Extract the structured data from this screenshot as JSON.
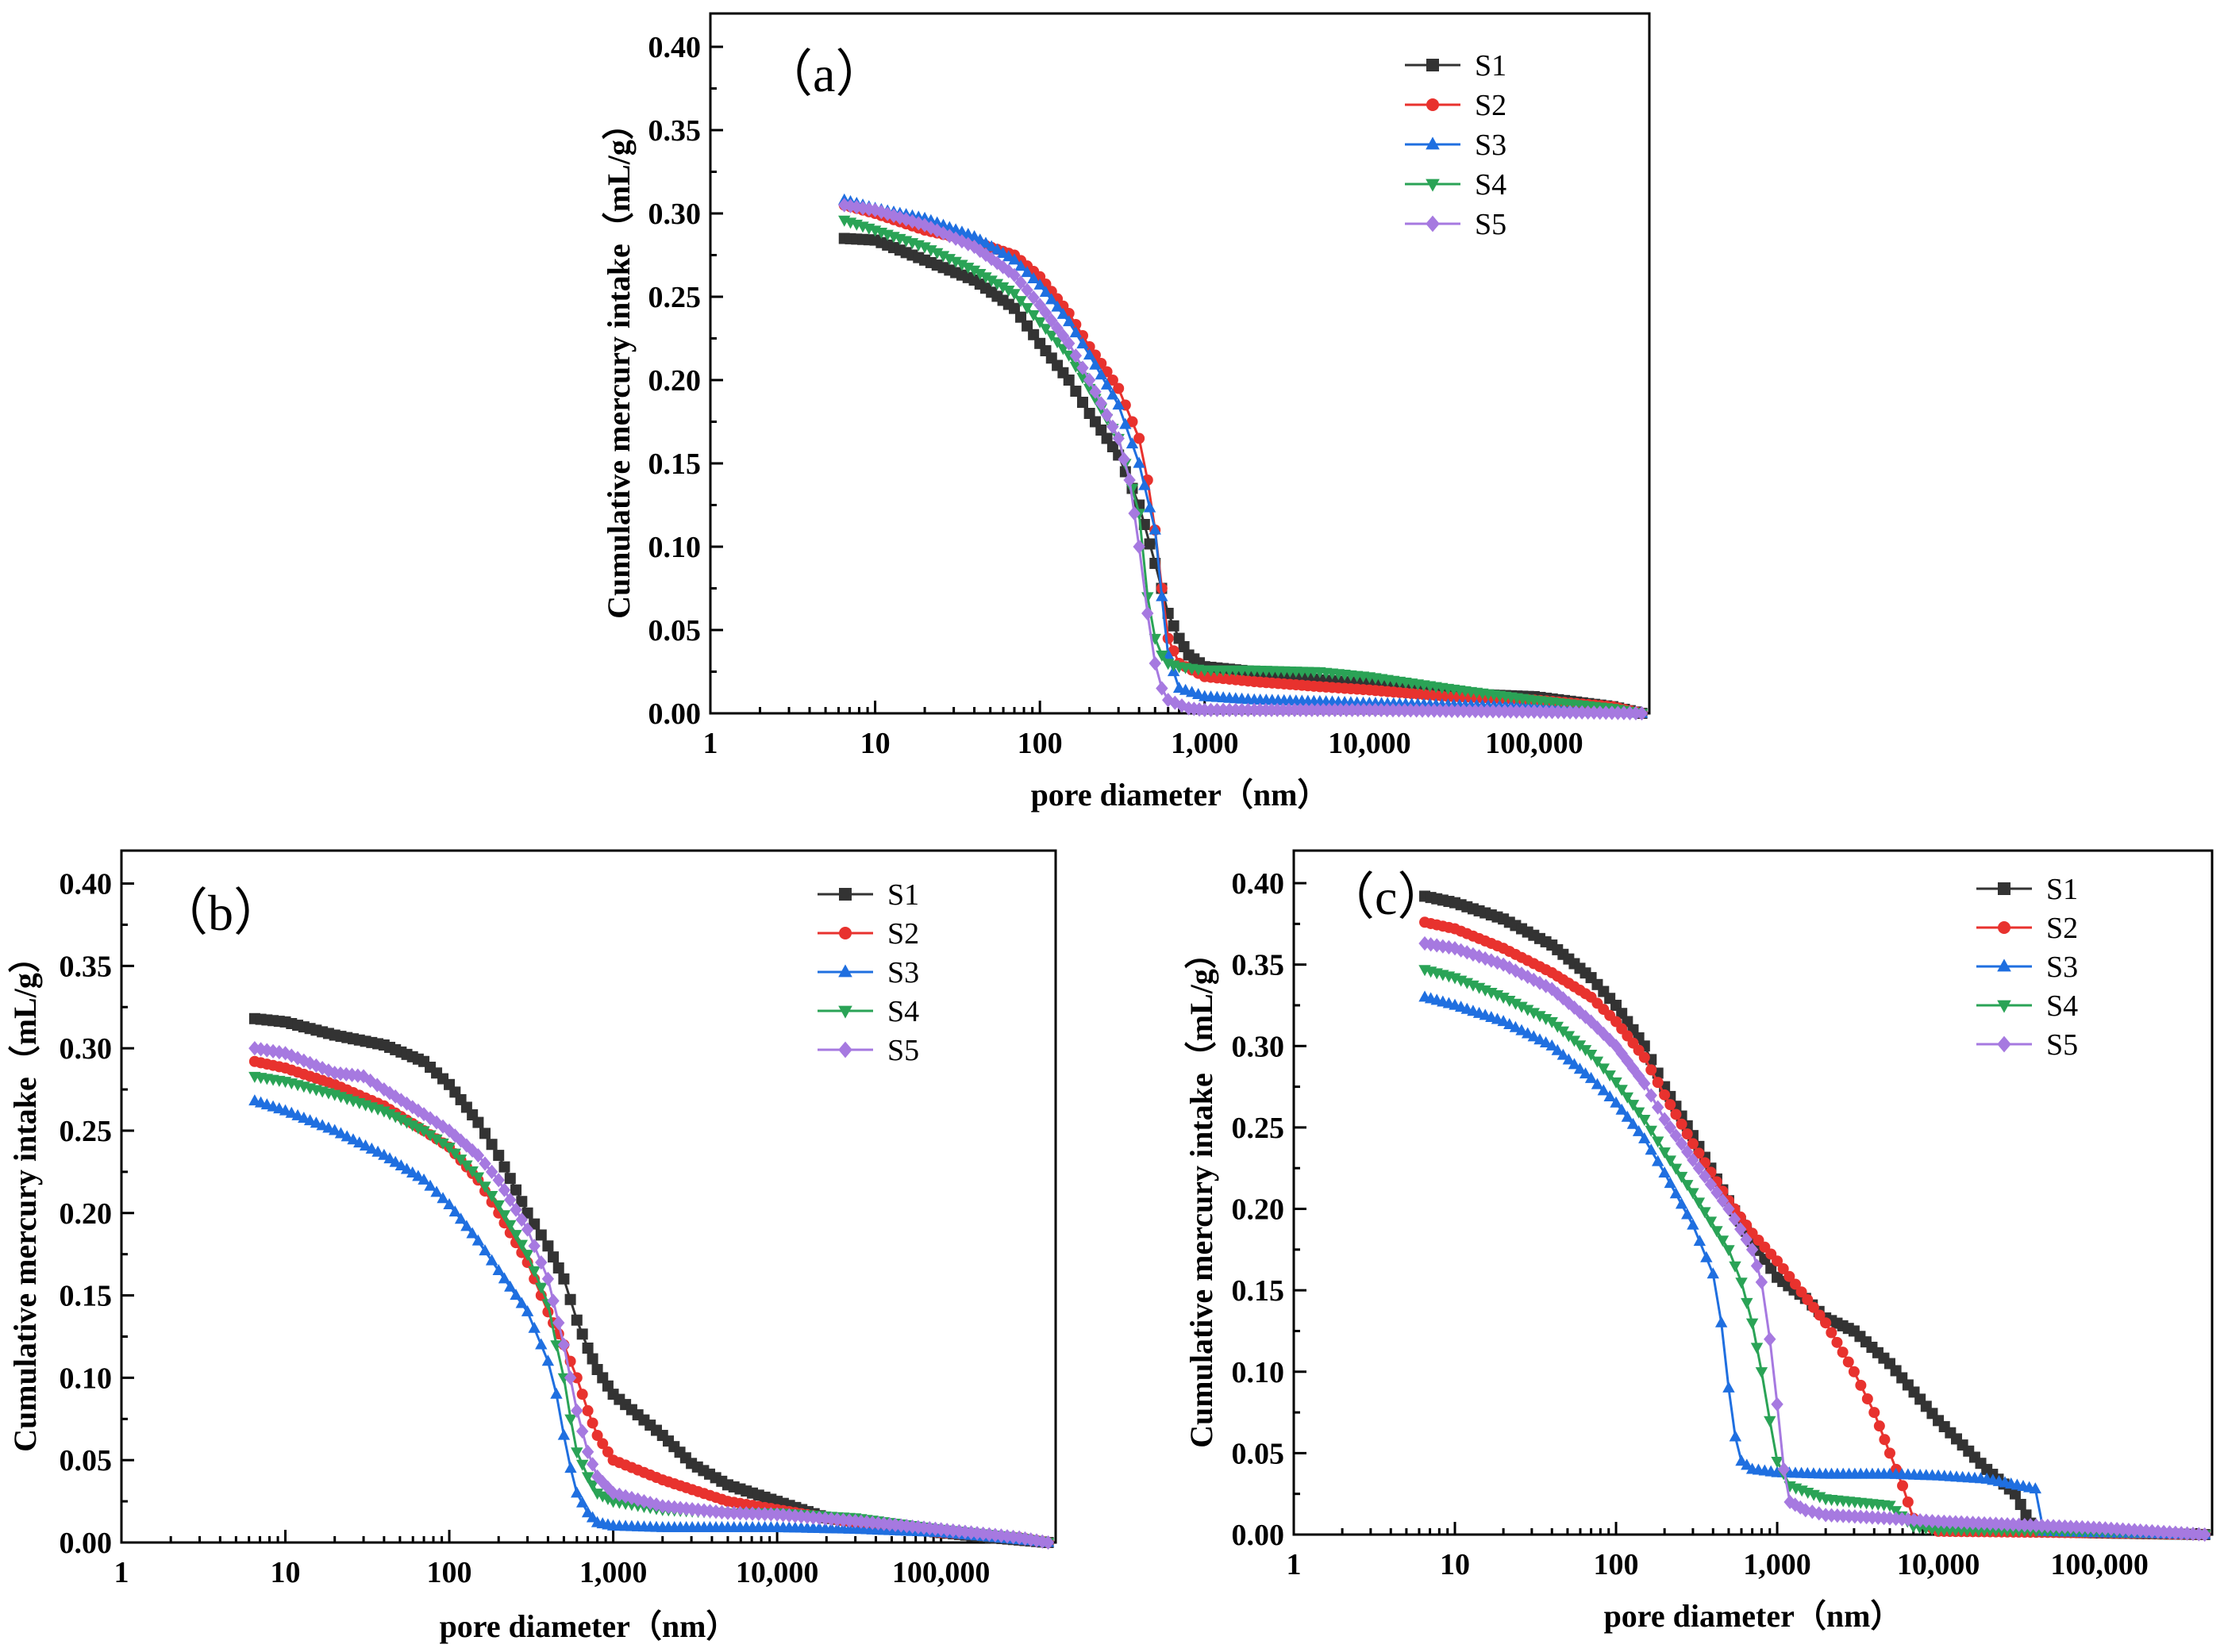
{
  "figure": {
    "series_colors": {
      "S1": "#333333",
      "S2": "#e8322e",
      "S3": "#1f6fe0",
      "S4": "#2aa356",
      "S5": "#a679e0"
    },
    "series_markers": {
      "S1": "square",
      "S2": "circle",
      "S3": "triangle-up",
      "S4": "triangle-down",
      "S5": "diamond"
    }
  },
  "chart_data": [
    {
      "type": "line",
      "panel_label": "（a）",
      "xlabel": "pore diameter（nm）",
      "ylabel": "Cumulative mercury intake（mL/g）",
      "xscale": "log",
      "xlim": [
        1,
        500000
      ],
      "ylim": [
        0,
        0.42
      ],
      "xticks": [
        1,
        10,
        100,
        1000,
        10000,
        100000
      ],
      "xtick_labels": [
        "1",
        "10",
        "100",
        "1,000",
        "10,000",
        "100,000"
      ],
      "yticks": [
        0,
        0.05,
        0.1,
        0.15,
        0.2,
        0.25,
        0.3,
        0.35,
        0.4
      ],
      "ytick_labels": [
        "0.00",
        "0.05",
        "0.10",
        "0.15",
        "0.20",
        "0.25",
        "0.30",
        "0.35",
        "0.40"
      ],
      "legend": [
        "S1",
        "S2",
        "S3",
        "S4",
        "S5"
      ],
      "legend_position": "top-right",
      "series": [
        {
          "name": "S1",
          "x": [
            6.5,
            10,
            20,
            40,
            70,
            100,
            150,
            200,
            300,
            400,
            500,
            600,
            700,
            800,
            1000,
            2000,
            5000,
            10000,
            30000,
            100000,
            300000,
            450000
          ],
          "y": [
            0.285,
            0.284,
            0.272,
            0.26,
            0.243,
            0.222,
            0.2,
            0.18,
            0.155,
            0.125,
            0.09,
            0.06,
            0.045,
            0.035,
            0.028,
            0.025,
            0.02,
            0.018,
            0.012,
            0.01,
            0.004,
            0.0
          ]
        },
        {
          "name": "S2",
          "x": [
            6.5,
            10,
            20,
            40,
            70,
            100,
            150,
            200,
            300,
            400,
            450,
            500,
            550,
            600,
            700,
            1000,
            2000,
            5000,
            10000,
            30000,
            100000,
            300000,
            450000
          ],
          "y": [
            0.305,
            0.3,
            0.29,
            0.283,
            0.275,
            0.262,
            0.24,
            0.22,
            0.195,
            0.165,
            0.14,
            0.11,
            0.075,
            0.045,
            0.03,
            0.022,
            0.019,
            0.016,
            0.014,
            0.01,
            0.008,
            0.004,
            0.0
          ]
        },
        {
          "name": "S3",
          "x": [
            6.5,
            10,
            20,
            40,
            70,
            100,
            150,
            200,
            300,
            400,
            500,
            550,
            600,
            700,
            1000,
            2000,
            5000,
            10000,
            30000,
            100000,
            450000
          ],
          "y": [
            0.308,
            0.303,
            0.297,
            0.286,
            0.272,
            0.257,
            0.235,
            0.215,
            0.185,
            0.15,
            0.11,
            0.07,
            0.035,
            0.015,
            0.01,
            0.008,
            0.007,
            0.006,
            0.005,
            0.004,
            0.0
          ]
        },
        {
          "name": "S4",
          "x": [
            6.5,
            10,
            20,
            40,
            70,
            100,
            150,
            200,
            300,
            400,
            450,
            500,
            550,
            600,
            700,
            1000,
            2000,
            5000,
            10000,
            30000,
            100000,
            300000,
            450000
          ],
          "y": [
            0.296,
            0.29,
            0.28,
            0.266,
            0.252,
            0.235,
            0.215,
            0.195,
            0.165,
            0.12,
            0.07,
            0.045,
            0.035,
            0.03,
            0.028,
            0.026,
            0.026,
            0.025,
            0.022,
            0.015,
            0.008,
            0.003,
            0.0
          ]
        },
        {
          "name": "S5",
          "x": [
            6.5,
            10,
            20,
            40,
            70,
            100,
            150,
            200,
            300,
            350,
            400,
            450,
            500,
            550,
            600,
            800,
            1000,
            2000,
            10000,
            100000,
            450000
          ],
          "y": [
            0.305,
            0.302,
            0.293,
            0.28,
            0.263,
            0.245,
            0.222,
            0.2,
            0.165,
            0.14,
            0.1,
            0.06,
            0.03,
            0.015,
            0.008,
            0.003,
            0.002,
            0.002,
            0.002,
            0.001,
            0.0
          ]
        }
      ]
    },
    {
      "type": "line",
      "panel_label": "（b）",
      "xlabel": "pore diameter（nm）",
      "ylabel": "Cumulative mercury intake（mL/g）",
      "xscale": "log",
      "xlim": [
        1,
        500000
      ],
      "ylim": [
        0,
        0.42
      ],
      "xticks": [
        1,
        10,
        100,
        1000,
        10000,
        100000
      ],
      "xtick_labels": [
        "1",
        "10",
        "100",
        "1,000",
        "10,000",
        "100,000"
      ],
      "yticks": [
        0,
        0.05,
        0.1,
        0.15,
        0.2,
        0.25,
        0.3,
        0.35,
        0.4
      ],
      "ytick_labels": [
        "0.00",
        "0.05",
        "0.10",
        "0.15",
        "0.20",
        "0.25",
        "0.30",
        "0.35",
        "0.40"
      ],
      "legend": [
        "S1",
        "S2",
        "S3",
        "S4",
        "S5"
      ],
      "legend_position": "top-right",
      "series": [
        {
          "name": "S1",
          "x": [
            6.5,
            10,
            20,
            40,
            70,
            100,
            150,
            200,
            300,
            400,
            500,
            600,
            700,
            800,
            1000,
            2000,
            3000,
            5000,
            10000,
            20000,
            50000,
            100000,
            200000,
            450000
          ],
          "y": [
            0.318,
            0.316,
            0.308,
            0.302,
            0.292,
            0.278,
            0.255,
            0.235,
            0.2,
            0.18,
            0.16,
            0.135,
            0.118,
            0.105,
            0.09,
            0.065,
            0.048,
            0.035,
            0.025,
            0.015,
            0.01,
            0.006,
            0.003,
            0.0
          ]
        },
        {
          "name": "S2",
          "x": [
            6.5,
            10,
            20,
            40,
            70,
            100,
            150,
            200,
            300,
            400,
            500,
            600,
            700,
            800,
            1000,
            2000,
            5000,
            10000,
            30000,
            100000,
            300000,
            450000
          ],
          "y": [
            0.292,
            0.288,
            0.278,
            0.265,
            0.25,
            0.24,
            0.22,
            0.2,
            0.17,
            0.14,
            0.12,
            0.1,
            0.08,
            0.065,
            0.05,
            0.038,
            0.025,
            0.02,
            0.012,
            0.006,
            0.003,
            0.0
          ]
        },
        {
          "name": "S3",
          "x": [
            6.5,
            10,
            20,
            40,
            70,
            100,
            150,
            200,
            300,
            400,
            450,
            500,
            550,
            600,
            700,
            800,
            1000,
            2000,
            5000,
            10000,
            30000,
            100000,
            450000
          ],
          "y": [
            0.268,
            0.262,
            0.25,
            0.235,
            0.22,
            0.205,
            0.183,
            0.165,
            0.14,
            0.11,
            0.09,
            0.065,
            0.045,
            0.03,
            0.018,
            0.012,
            0.01,
            0.009,
            0.009,
            0.009,
            0.008,
            0.006,
            0.0
          ]
        },
        {
          "name": "S4",
          "x": [
            6.5,
            10,
            20,
            40,
            70,
            100,
            150,
            200,
            300,
            400,
            450,
            500,
            550,
            600,
            700,
            800,
            1000,
            2000,
            5000,
            10000,
            30000,
            100000,
            300000,
            450000
          ],
          "y": [
            0.283,
            0.28,
            0.272,
            0.262,
            0.25,
            0.24,
            0.222,
            0.205,
            0.175,
            0.145,
            0.12,
            0.1,
            0.075,
            0.055,
            0.04,
            0.03,
            0.025,
            0.02,
            0.018,
            0.018,
            0.015,
            0.008,
            0.003,
            0.0
          ]
        },
        {
          "name": "S5",
          "x": [
            6.5,
            10,
            20,
            30,
            40,
            70,
            100,
            150,
            200,
            300,
            400,
            500,
            600,
            700,
            800,
            1000,
            2000,
            5000,
            10000,
            30000,
            100000,
            300000,
            450000
          ],
          "y": [
            0.3,
            0.297,
            0.285,
            0.283,
            0.275,
            0.26,
            0.25,
            0.235,
            0.22,
            0.19,
            0.16,
            0.12,
            0.08,
            0.055,
            0.04,
            0.03,
            0.022,
            0.018,
            0.017,
            0.013,
            0.008,
            0.003,
            0.0
          ]
        }
      ]
    },
    {
      "type": "line",
      "panel_label": "（c）",
      "xlabel": "pore diameter（nm）",
      "ylabel": "Cumulative mercury intake（mL/g）",
      "xscale": "log",
      "xlim": [
        1,
        500000
      ],
      "ylim": [
        0,
        0.42
      ],
      "xticks": [
        1,
        10,
        100,
        1000,
        10000,
        100000
      ],
      "xtick_labels": [
        "1",
        "10",
        "100",
        "1,000",
        "10,000",
        "100,000"
      ],
      "yticks": [
        0,
        0.05,
        0.1,
        0.15,
        0.2,
        0.25,
        0.3,
        0.35,
        0.4
      ],
      "ytick_labels": [
        "0.00",
        "0.05",
        "0.10",
        "0.15",
        "0.20",
        "0.25",
        "0.30",
        "0.35",
        "0.40"
      ],
      "legend": [
        "S1",
        "S2",
        "S3",
        "S4",
        "S5"
      ],
      "legend_position": "top-right",
      "series": [
        {
          "name": "S1",
          "x": [
            6.5,
            10,
            20,
            40,
            70,
            100,
            150,
            200,
            300,
            500,
            700,
            1000,
            1500,
            2000,
            3000,
            5000,
            10000,
            20000,
            30000,
            35000,
            40000,
            100000,
            450000
          ],
          "y": [
            0.392,
            0.388,
            0.378,
            0.362,
            0.342,
            0.325,
            0.3,
            0.275,
            0.245,
            0.205,
            0.18,
            0.158,
            0.145,
            0.133,
            0.125,
            0.105,
            0.07,
            0.04,
            0.025,
            0.012,
            0.002,
            0.001,
            0.0
          ]
        },
        {
          "name": "S2",
          "x": [
            6.5,
            10,
            20,
            40,
            70,
            100,
            150,
            200,
            300,
            500,
            700,
            1000,
            2000,
            3000,
            4000,
            5000,
            6000,
            7000,
            10000,
            100000,
            450000
          ],
          "y": [
            0.376,
            0.372,
            0.36,
            0.345,
            0.33,
            0.315,
            0.293,
            0.27,
            0.24,
            0.205,
            0.185,
            0.168,
            0.13,
            0.1,
            0.075,
            0.05,
            0.03,
            0.01,
            0.002,
            0.001,
            0.0
          ]
        },
        {
          "name": "S3",
          "x": [
            6.5,
            10,
            20,
            40,
            70,
            100,
            150,
            200,
            300,
            400,
            450,
            500,
            550,
            600,
            700,
            1000,
            2000,
            5000,
            10000,
            20000,
            40000,
            45000,
            100000,
            450000
          ],
          "y": [
            0.33,
            0.325,
            0.315,
            0.3,
            0.28,
            0.265,
            0.243,
            0.222,
            0.19,
            0.16,
            0.13,
            0.09,
            0.06,
            0.045,
            0.04,
            0.038,
            0.037,
            0.037,
            0.036,
            0.034,
            0.028,
            0.002,
            0.001,
            0.0
          ]
        },
        {
          "name": "S4",
          "x": [
            6.5,
            10,
            20,
            40,
            70,
            100,
            150,
            200,
            300,
            500,
            600,
            700,
            800,
            900,
            1000,
            1200,
            2000,
            5000,
            7000,
            10000,
            100000,
            450000
          ],
          "y": [
            0.347,
            0.342,
            0.33,
            0.315,
            0.295,
            0.278,
            0.255,
            0.235,
            0.21,
            0.175,
            0.155,
            0.13,
            0.1,
            0.07,
            0.045,
            0.03,
            0.022,
            0.018,
            0.005,
            0.003,
            0.002,
            0.0
          ]
        },
        {
          "name": "S5",
          "x": [
            6.5,
            10,
            20,
            40,
            70,
            100,
            150,
            200,
            300,
            500,
            700,
            800,
            900,
            1000,
            1100,
            1200,
            1500,
            2000,
            5000,
            10000,
            100000,
            450000
          ],
          "y": [
            0.363,
            0.36,
            0.35,
            0.335,
            0.315,
            0.3,
            0.277,
            0.255,
            0.23,
            0.2,
            0.175,
            0.155,
            0.12,
            0.08,
            0.04,
            0.02,
            0.015,
            0.012,
            0.01,
            0.008,
            0.004,
            0.0
          ]
        }
      ]
    }
  ]
}
